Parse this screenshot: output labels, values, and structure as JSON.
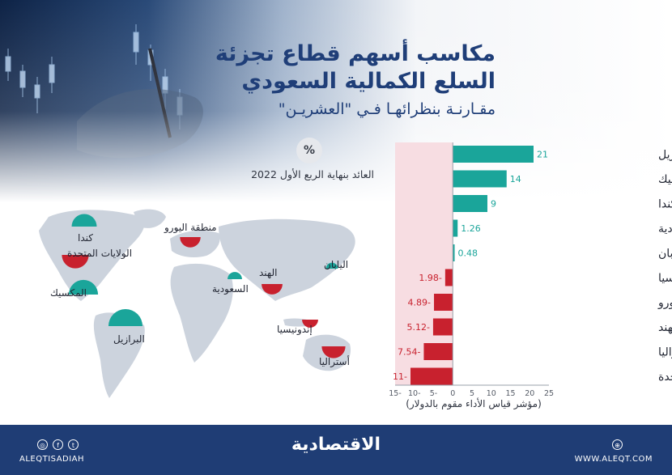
{
  "title": {
    "line1": "مكاسب أسهم قطاع تجزئة",
    "line2": "السلع الكمالية السعودي",
    "subtitle": "مقـارنـة بنظرائهـا فـي \"العشريـن\""
  },
  "unit_symbol": "%",
  "chart_caption": "العائد بنهاية الربع الأول 2022",
  "axis_caption": "(مؤشر قياس الأداء مقوم بالدولار)",
  "colors": {
    "positive": "#1aa59a",
    "negative": "#c8212e",
    "navy": "#1f3d75",
    "negative_zone": "#f7dde2"
  },
  "chart_data": {
    "type": "bar",
    "orientation": "horizontal",
    "categories": [
      "البرازيل",
      "المكسيك",
      "كندا",
      "السعودية",
      "اليابان",
      "إندونيسيا",
      "منطقة اليورو",
      "الهند",
      "أستراليا",
      "الولايات المتحدة"
    ],
    "values": [
      21,
      14,
      9,
      1.26,
      0.48,
      -1.98,
      -4.89,
      -5.12,
      -7.54,
      -11
    ],
    "value_labels": [
      "21",
      "14",
      "9",
      "1.26",
      "0.48",
      "1.98-",
      "4.89-",
      "5.12-",
      "7.54-",
      "11-"
    ],
    "xlim": [
      -15,
      25
    ],
    "x_ticks": [
      -15,
      -10,
      -5,
      0,
      5,
      10,
      15,
      20,
      25
    ],
    "x_tick_labels": [
      "15-",
      "10-",
      "5-",
      "0",
      "5",
      "10",
      "15",
      "20",
      "25"
    ],
    "grid": false,
    "legend": null
  },
  "map": {
    "labels": [
      "كندا",
      "الولايات المتحدة",
      "المكسيك",
      "البرازيل",
      "منطقة اليورو",
      "السعودية",
      "الهند",
      "اليابان",
      "إندونيسيا",
      "أستراليا"
    ]
  },
  "footer": {
    "logo": "الاقتصادية",
    "handle": "ALEQTISADIAH",
    "site": "WWW.ALEQT.COM",
    "social_icons": [
      "instagram-icon",
      "facebook-icon",
      "twitter-icon"
    ]
  }
}
